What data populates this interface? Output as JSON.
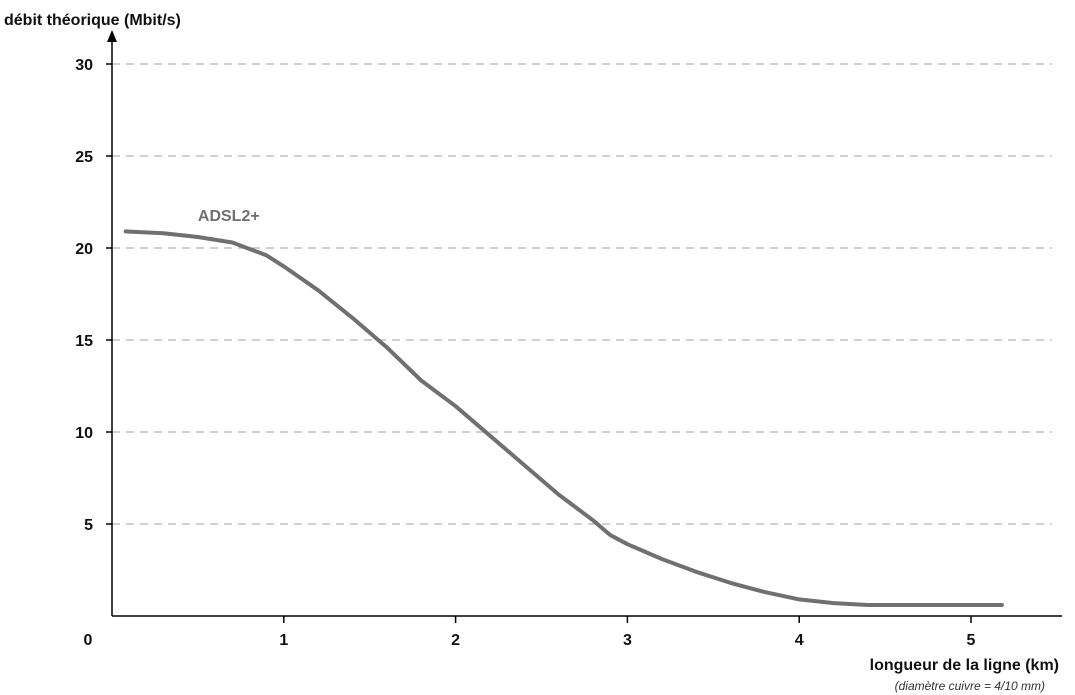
{
  "chart_data": {
    "type": "line",
    "ylabel": "débit théorique (Mbit/s)",
    "xlabel": "longueur de la ligne (km)",
    "xnote": "(diamètre cuivre = 4/10 mm)",
    "origin_label": "0",
    "xlim": [
      0,
      5.5
    ],
    "ylim": [
      0,
      30
    ],
    "xticks": [
      "1",
      "2",
      "3",
      "4",
      "5"
    ],
    "yticks": [
      "5",
      "10",
      "15",
      "20",
      "25",
      "30"
    ],
    "grid": "horizontal dashed",
    "series": [
      {
        "name": "ADSL2+",
        "color": "#707070",
        "x": [
          0.08,
          0.3,
          0.5,
          0.7,
          0.9,
          1.0,
          1.2,
          1.4,
          1.6,
          1.8,
          2.0,
          2.2,
          2.4,
          2.6,
          2.8,
          2.9,
          3.0,
          3.2,
          3.4,
          3.6,
          3.8,
          4.0,
          4.2,
          4.4,
          4.5,
          4.8,
          5.0,
          5.18
        ],
        "y": [
          20.9,
          20.8,
          20.6,
          20.3,
          19.6,
          19.0,
          17.7,
          16.2,
          14.6,
          12.8,
          11.4,
          9.8,
          8.2,
          6.6,
          5.2,
          4.4,
          3.9,
          3.1,
          2.4,
          1.8,
          1.3,
          0.9,
          0.7,
          0.6,
          0.6,
          0.6,
          0.6,
          0.6
        ]
      }
    ]
  }
}
